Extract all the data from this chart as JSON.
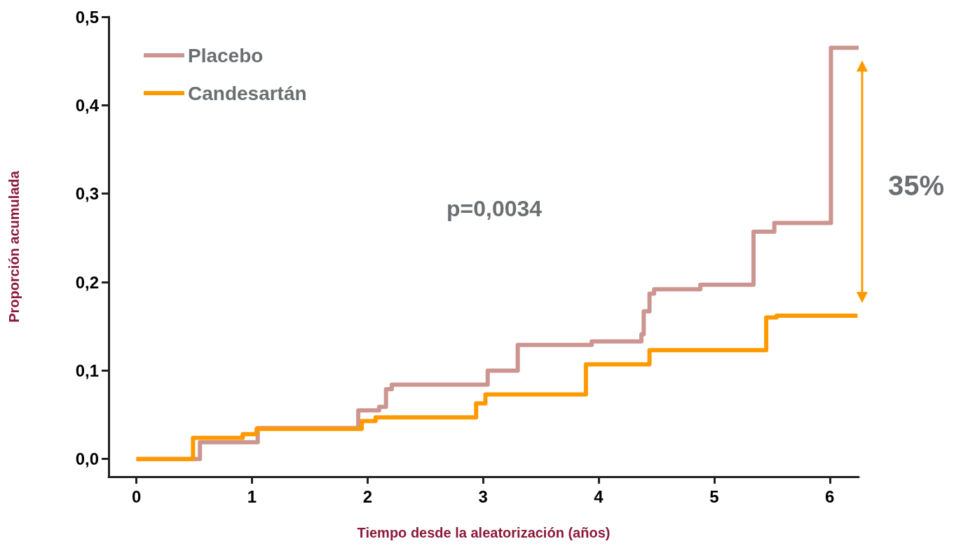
{
  "chart_data": {
    "type": "step",
    "xlabel": "Tiempo desde la aleatorización (años)",
    "ylabel": "Proporción acumulada",
    "annotations": [
      "p=0,0034",
      "35%"
    ],
    "xlim": [
      -0.24,
      6.25
    ],
    "ylim": [
      -0.02,
      0.5
    ],
    "xticks": [
      0,
      1,
      2,
      3,
      4,
      5,
      6
    ],
    "yticks": [
      {
        "value": 0,
        "label": "0,0"
      },
      {
        "value": 0.1,
        "label": "0,1"
      },
      {
        "value": 0.2,
        "label": "0,2"
      },
      {
        "value": 0.3,
        "label": "0,3"
      },
      {
        "value": 0.4,
        "label": "0,4"
      },
      {
        "value": 0.5,
        "label": "0,5"
      }
    ],
    "grid": false,
    "legend": "top left",
    "series": [
      {
        "name": "Placebo",
        "color": "#cc9590",
        "x": [
          0,
          0.55,
          1.05,
          1.92,
          2.1,
          2.16,
          2.21,
          3.04,
          3.3,
          3.94,
          4.37,
          4.39,
          4.44,
          4.48,
          4.88,
          5.34,
          5.52,
          6.01,
          6.25
        ],
        "values": [
          0,
          0.019,
          0.035,
          0.055,
          0.059,
          0.079,
          0.084,
          0.1,
          0.129,
          0.133,
          0.141,
          0.167,
          0.187,
          0.192,
          0.197,
          0.257,
          0.267,
          0.465,
          0.465
        ]
      },
      {
        "name": "Candesartán",
        "color": "#ff9900",
        "x": [
          0,
          0.49,
          0.92,
          1.04,
          1.95,
          2.07,
          2.94,
          3.02,
          3.89,
          4.44,
          5.45,
          5.54,
          6.24
        ],
        "values": [
          0,
          0.024,
          0.028,
          0.034,
          0.043,
          0.047,
          0.063,
          0.073,
          0.107,
          0.123,
          0.16,
          0.162,
          0.162
        ]
      }
    ]
  }
}
